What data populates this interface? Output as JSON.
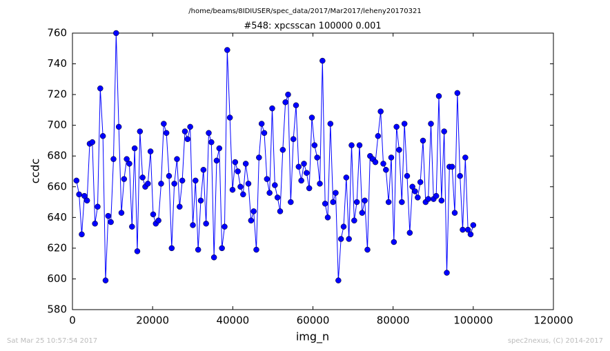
{
  "chart_data": {
    "type": "line",
    "suptitle": "/home/beams/8IDIUSER/spec_data/2017/Mar2017/leheny20170321",
    "title": "#548: xpcsscan 100000 0.001",
    "x_label": "img_n",
    "y_label": "ccdc",
    "footer_left": "Sat Mar 25 10:57:54 2017",
    "footer_right": "spec2nexus, (C) 2014-2017",
    "xlim": [
      0,
      120000
    ],
    "xticks": [
      0,
      20000,
      40000,
      60000,
      80000,
      100000,
      120000
    ],
    "ylim": [
      580,
      760
    ],
    "yticks": [
      580,
      600,
      620,
      640,
      660,
      680,
      700,
      720,
      740,
      760
    ],
    "x": [
      1000,
      1660,
      2320,
      2980,
      3640,
      4300,
      4960,
      5620,
      6280,
      6940,
      7600,
      8260,
      8920,
      9580,
      10240,
      10900,
      11560,
      12220,
      12880,
      13540,
      14200,
      14860,
      15520,
      16180,
      16840,
      17500,
      18160,
      18820,
      19480,
      20140,
      20800,
      21460,
      22120,
      22780,
      23440,
      24100,
      24760,
      25420,
      26080,
      26740,
      27400,
      28060,
      28720,
      29380,
      30040,
      30700,
      31360,
      32020,
      32680,
      33340,
      34000,
      34660,
      35320,
      35980,
      36640,
      37300,
      37960,
      38620,
      39280,
      39940,
      40600,
      41260,
      41920,
      42580,
      43240,
      43900,
      44560,
      45220,
      45880,
      46540,
      47200,
      47860,
      48520,
      49180,
      49840,
      50500,
      51160,
      51820,
      52480,
      53140,
      53800,
      54460,
      55120,
      55780,
      56440,
      57100,
      57760,
      58420,
      59080,
      59740,
      60400,
      61060,
      61720,
      62380,
      63040,
      63700,
      64360,
      65020,
      65680,
      66340,
      67000,
      67660,
      68320,
      68980,
      69640,
      70300,
      70960,
      71620,
      72280,
      72940,
      73600,
      74260,
      74920,
      75580,
      76240,
      76900,
      77560,
      78220,
      78880,
      79540,
      80200,
      80860,
      81520,
      82180,
      82840,
      83500,
      84160,
      84820,
      85480,
      86140,
      86800,
      87460,
      88120,
      88780,
      89440,
      90100,
      90760,
      91420,
      92080,
      92740,
      93400,
      94060,
      94720,
      95380,
      96040,
      96700,
      97360,
      98020,
      98680,
      99340,
      100000
    ],
    "series": [
      {
        "color": "#0000ff",
        "values": [
          664,
          655,
          629,
          654,
          651,
          688,
          689,
          636,
          647,
          724,
          693,
          599,
          641,
          637,
          678,
          760,
          699,
          643,
          665,
          678,
          675,
          634,
          685,
          618,
          696,
          666,
          660,
          662,
          683,
          642,
          636,
          638,
          662,
          701,
          695,
          667,
          620,
          662,
          678,
          647,
          664,
          696,
          691,
          699,
          635,
          664,
          619,
          651,
          671,
          636,
          695,
          689,
          614,
          677,
          685,
          620,
          634,
          749,
          705,
          658,
          676,
          670,
          660,
          655,
          675,
          662,
          638,
          644,
          619,
          679,
          701,
          695,
          665,
          656,
          711,
          661,
          653,
          644,
          684,
          715,
          720,
          650,
          691,
          713,
          673,
          664,
          675,
          669,
          659,
          705,
          687,
          679,
          662,
          742,
          649,
          640,
          701,
          650,
          656,
          599,
          626,
          634,
          666,
          626,
          687,
          638,
          650,
          687,
          643,
          651,
          619,
          680,
          678,
          676,
          693,
          709,
          675,
          671,
          650,
          679,
          624,
          699,
          684,
          650,
          701,
          667,
          630,
          660,
          657,
          653,
          663,
          690,
          650,
          652,
          701,
          652,
          654,
          719,
          651,
          696,
          604,
          673,
          673,
          643,
          721,
          667,
          632,
          679,
          632,
          629,
          635
        ]
      }
    ]
  }
}
